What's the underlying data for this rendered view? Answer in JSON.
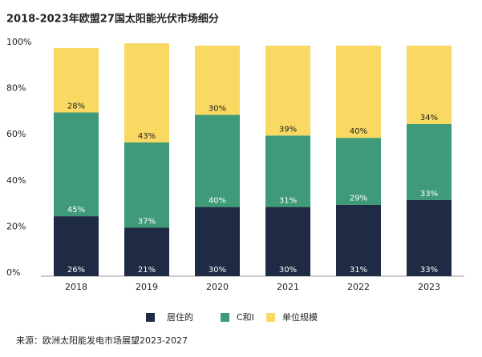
{
  "chart_data": {
    "type": "stacked-bar",
    "title": "2018-2023年欧盟27国太阳能光伏市场细分",
    "categories": [
      "2018",
      "2019",
      "2020",
      "2021",
      "2022",
      "2023"
    ],
    "series": [
      {
        "name": "居住的",
        "color": "#1f2a44",
        "values": [
          26,
          21,
          30,
          30,
          31,
          33
        ],
        "value_labels": [
          "26%",
          "21%",
          "30%",
          "30%",
          "31%",
          "33%"
        ]
      },
      {
        "name": "C和I",
        "color": "#3e9a79",
        "values": [
          45,
          37,
          40,
          31,
          29,
          33
        ],
        "value_labels": [
          "45%",
          "37%",
          "40%",
          "31%",
          "29%",
          "33%"
        ]
      },
      {
        "name": "单位规模",
        "color": "#f9d961",
        "values": [
          28,
          43,
          30,
          39,
          40,
          34
        ],
        "value_labels": [
          "28%",
          "43%",
          "30%",
          "39%",
          "40%",
          "34%"
        ]
      }
    ],
    "ylim": [
      0,
      100
    ],
    "yticks": [
      {
        "value": 0,
        "label": "0%"
      },
      {
        "value": 20,
        "label": "20%"
      },
      {
        "value": 40,
        "label": "40%"
      },
      {
        "value": 60,
        "label": "60%"
      },
      {
        "value": 80,
        "label": "80%"
      },
      {
        "value": 100,
        "label": "100%"
      }
    ],
    "source": "来源：欧洲太阳能发电市场展望2023-2027"
  }
}
